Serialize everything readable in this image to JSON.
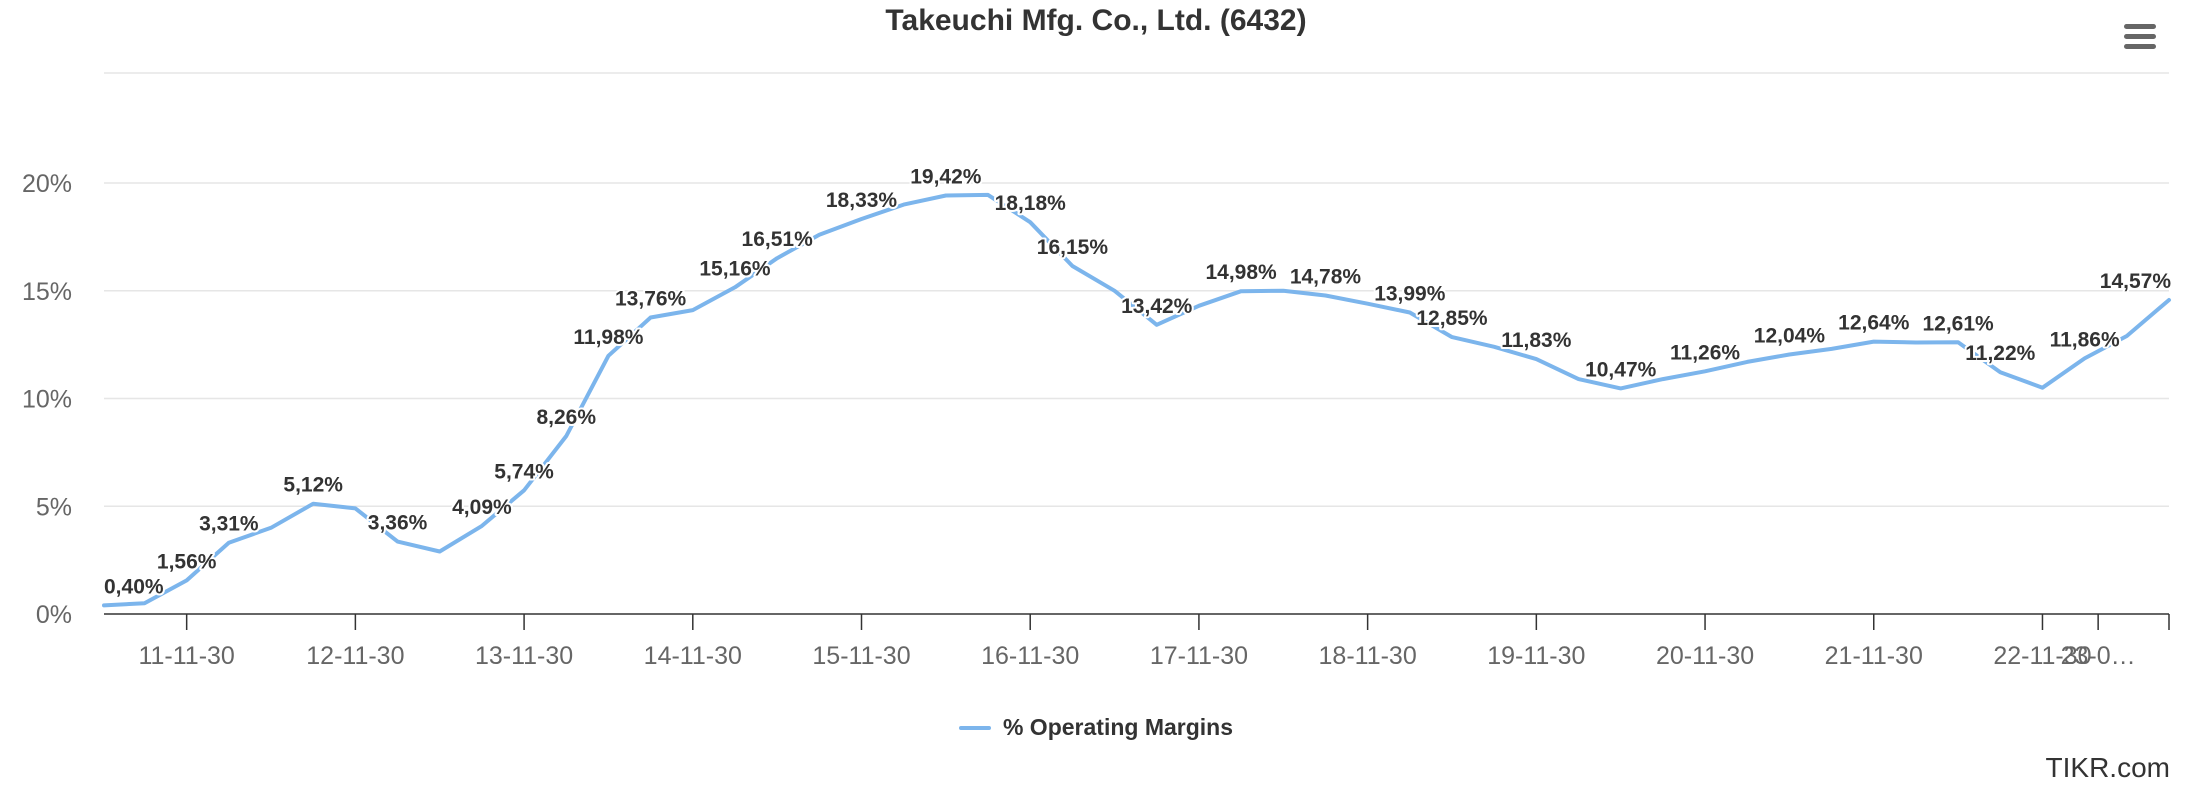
{
  "chart_data": {
    "type": "line",
    "title": "Takeuchi Mfg. Co., Ltd. (6432)",
    "xlabel": "",
    "ylabel": "",
    "ylim": [
      0,
      25
    ],
    "y_ticks": [
      0,
      5,
      10,
      15,
      20
    ],
    "y_tick_labels": [
      "0%",
      "5%",
      "10%",
      "15%",
      "20%"
    ],
    "x_tick_labels": [
      "11-11-30",
      "12-11-30",
      "13-11-30",
      "14-11-30",
      "15-11-30",
      "16-11-30",
      "17-11-30",
      "18-11-30",
      "19-11-30",
      "20-11-30",
      "21-11-30",
      "22-11-30",
      "23-0…"
    ],
    "x_tick_positions": [
      2011.91,
      2012.91,
      2013.91,
      2014.91,
      2015.91,
      2016.91,
      2017.91,
      2018.91,
      2019.91,
      2020.91,
      2021.91,
      2022.91,
      2023.24
    ],
    "x_range": [
      2011.42,
      2023.66
    ],
    "grid": true,
    "legend_position": "bottom",
    "line_color": "#7cb5ec",
    "series": [
      {
        "name": "% Operating Margins",
        "points": [
          {
            "x": 2011.42,
            "y": 0.4,
            "label": "0,40%"
          },
          {
            "x": 2011.66,
            "y": 0.5
          },
          {
            "x": 2011.91,
            "y": 1.56,
            "label": "1,56%"
          },
          {
            "x": 2012.16,
            "y": 3.31,
            "label": "3,31%"
          },
          {
            "x": 2012.41,
            "y": 4.0
          },
          {
            "x": 2012.66,
            "y": 5.12,
            "label": "5,12%"
          },
          {
            "x": 2012.91,
            "y": 4.9
          },
          {
            "x": 2013.16,
            "y": 3.36,
            "label": "3,36%"
          },
          {
            "x": 2013.41,
            "y": 2.9
          },
          {
            "x": 2013.66,
            "y": 4.09,
            "label": "4,09%"
          },
          {
            "x": 2013.91,
            "y": 5.74,
            "label": "5,74%"
          },
          {
            "x": 2014.16,
            "y": 8.26,
            "label": "8,26%"
          },
          {
            "x": 2014.41,
            "y": 11.98,
            "label": "11,98%"
          },
          {
            "x": 2014.66,
            "y": 13.76,
            "label": "13,76%"
          },
          {
            "x": 2014.91,
            "y": 14.1
          },
          {
            "x": 2015.16,
            "y": 15.16,
            "label": "15,16%"
          },
          {
            "x": 2015.41,
            "y": 16.51,
            "label": "16,51%"
          },
          {
            "x": 2015.66,
            "y": 17.6
          },
          {
            "x": 2015.91,
            "y": 18.33,
            "label": "18,33%"
          },
          {
            "x": 2016.16,
            "y": 19.0
          },
          {
            "x": 2016.41,
            "y": 19.42,
            "label": "19,42%"
          },
          {
            "x": 2016.66,
            "y": 19.45
          },
          {
            "x": 2016.91,
            "y": 18.18,
            "label": "18,18%"
          },
          {
            "x": 2017.16,
            "y": 16.15,
            "label": "16,15%"
          },
          {
            "x": 2017.41,
            "y": 15.0
          },
          {
            "x": 2017.66,
            "y": 13.42,
            "label": "13,42%"
          },
          {
            "x": 2017.91,
            "y": 14.3
          },
          {
            "x": 2018.16,
            "y": 14.98,
            "label": "14,98%"
          },
          {
            "x": 2018.41,
            "y": 15.0
          },
          {
            "x": 2018.66,
            "y": 14.78,
            "label": "14,78%"
          },
          {
            "x": 2018.91,
            "y": 14.4
          },
          {
            "x": 2019.16,
            "y": 13.99,
            "label": "13,99%"
          },
          {
            "x": 2019.41,
            "y": 12.85,
            "label": "12,85%"
          },
          {
            "x": 2019.66,
            "y": 12.4
          },
          {
            "x": 2019.91,
            "y": 11.83,
            "label": "11,83%"
          },
          {
            "x": 2020.16,
            "y": 10.9
          },
          {
            "x": 2020.41,
            "y": 10.47,
            "label": "10,47%"
          },
          {
            "x": 2020.66,
            "y": 10.9
          },
          {
            "x": 2020.91,
            "y": 11.26,
            "label": "11,26%"
          },
          {
            "x": 2021.16,
            "y": 11.7
          },
          {
            "x": 2021.41,
            "y": 12.04,
            "label": "12,04%"
          },
          {
            "x": 2021.66,
            "y": 12.3
          },
          {
            "x": 2021.91,
            "y": 12.64,
            "label": "12,64%"
          },
          {
            "x": 2022.16,
            "y": 12.6
          },
          {
            "x": 2022.41,
            "y": 12.61,
            "label": "12,61%"
          },
          {
            "x": 2022.66,
            "y": 11.22,
            "label": "11,22%"
          },
          {
            "x": 2022.91,
            "y": 10.5
          },
          {
            "x": 2023.16,
            "y": 11.86,
            "label": "11,86%"
          },
          {
            "x": 2023.41,
            "y": 12.9
          },
          {
            "x": 2023.66,
            "y": 14.57,
            "label": "14,57%"
          }
        ]
      }
    ]
  },
  "credit": "TIKR.com",
  "menu_icon": "hamburger-menu-icon"
}
